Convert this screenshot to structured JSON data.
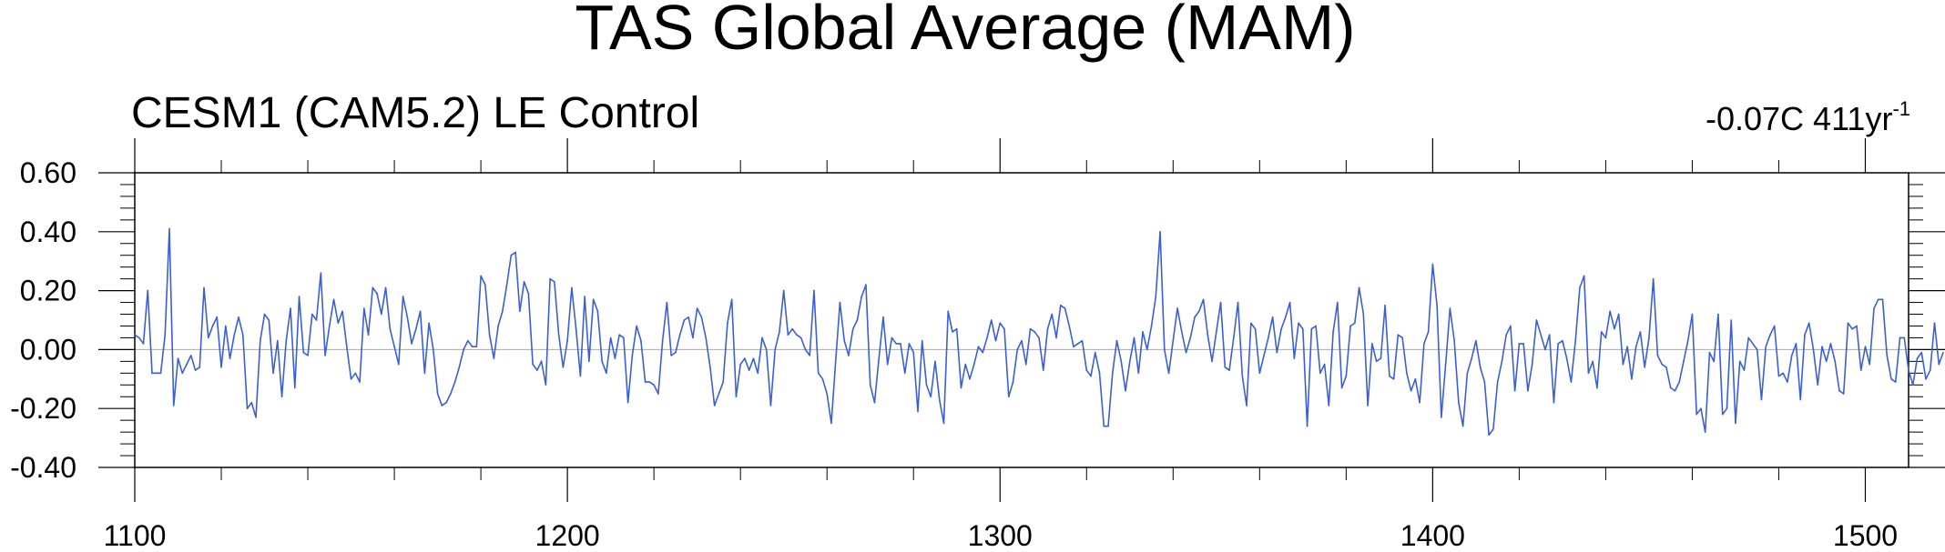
{
  "chart_data": {
    "type": "line",
    "title": "TAS Global Average (MAM)",
    "subtitle": "CESM1 (CAM5.2) LE Control",
    "trend_label": "-0.07C 411yr",
    "trend_exponent": "-1",
    "xlabel": "",
    "ylabel": "",
    "xlim": [
      1100,
      1510
    ],
    "ylim": [
      -0.4,
      0.6
    ],
    "xticks": [
      1100,
      1200,
      1300,
      1400,
      1500
    ],
    "xtick_labels": [
      "1100",
      "1200",
      "1300",
      "1400",
      "1500"
    ],
    "yticks": [
      -0.4,
      -0.2,
      0.0,
      0.2,
      0.4,
      0.6
    ],
    "ytick_labels": [
      "-0.40",
      "-0.20",
      "0.00",
      "0.20",
      "0.40",
      "0.60"
    ],
    "zero_line": true,
    "grid": false,
    "colors": {
      "series": "#3b5fd8",
      "axis": "#000000",
      "zero_line": "#aaaaaa"
    },
    "series": [
      {
        "x_start": 1100,
        "x_step": 1,
        "values": [
          0.05,
          0.04,
          0.02,
          0.2,
          -0.08,
          -0.08,
          -0.08,
          0.05,
          0.41,
          -0.19,
          -0.03,
          -0.08,
          -0.05,
          -0.02,
          -0.07,
          -0.06,
          0.21,
          0.04,
          0.08,
          0.11,
          -0.06,
          0.08,
          -0.03,
          0.05,
          0.11,
          0.05,
          -0.2,
          -0.18,
          -0.23,
          0.03,
          0.12,
          0.1,
          -0.08,
          0.03,
          -0.16,
          0.03,
          0.14,
          -0.13,
          0.18,
          -0.01,
          -0.02,
          0.12,
          0.1,
          0.26,
          -0.02,
          0.08,
          0.17,
          0.09,
          0.13,
          0.01,
          -0.1,
          -0.08,
          -0.11,
          0.14,
          0.05,
          0.21,
          0.19,
          0.12,
          0.21,
          0.07,
          0.01,
          -0.05,
          0.18,
          0.11,
          0.02,
          0.07,
          0.13,
          -0.08,
          0.09,
          0.0,
          -0.15,
          -0.19,
          -0.18,
          -0.15,
          -0.11,
          -0.06,
          0.0,
          0.03,
          0.01,
          0.01,
          0.25,
          0.22,
          0.05,
          -0.03,
          0.08,
          0.13,
          0.22,
          0.32,
          0.33,
          0.13,
          0.23,
          0.19,
          -0.05,
          -0.07,
          -0.04,
          -0.12,
          0.24,
          0.23,
          0.05,
          -0.06,
          0.03,
          0.21,
          0.07,
          -0.09,
          0.18,
          -0.04,
          0.17,
          0.13,
          -0.04,
          -0.08,
          0.04,
          -0.03,
          0.05,
          0.04,
          -0.18,
          -0.02,
          0.08,
          0.03,
          -0.11,
          -0.11,
          -0.12,
          -0.15,
          0.03,
          0.16,
          -0.02,
          -0.01,
          0.05,
          0.1,
          0.11,
          0.04,
          0.14,
          0.11,
          0.04,
          -0.06,
          -0.19,
          -0.15,
          -0.11,
          0.09,
          0.17,
          -0.16,
          -0.05,
          -0.03,
          -0.07,
          -0.03,
          -0.08,
          0.04,
          0.0,
          -0.19,
          0.0,
          0.06,
          0.2,
          0.05,
          0.07,
          0.05,
          0.04,
          0.0,
          -0.02,
          0.2,
          -0.08,
          -0.1,
          -0.15,
          -0.25,
          -0.04,
          0.16,
          0.03,
          -0.02,
          0.07,
          0.1,
          0.18,
          0.22,
          -0.12,
          -0.18,
          -0.03,
          0.11,
          -0.05,
          0.04,
          0.02,
          0.02,
          -0.08,
          0.02,
          -0.01,
          -0.21,
          0.03,
          -0.12,
          -0.16,
          -0.04,
          -0.17,
          -0.25,
          0.13,
          0.06,
          0.07,
          -0.13,
          -0.05,
          -0.1,
          -0.05,
          0.01,
          -0.01,
          0.04,
          0.1,
          0.03,
          0.09,
          0.07,
          -0.16,
          -0.11,
          0.0,
          0.03,
          -0.05,
          0.07,
          0.06,
          0.04,
          -0.07,
          0.07,
          0.12,
          0.04,
          0.15,
          0.14,
          0.08,
          0.01,
          0.02,
          0.03,
          -0.07,
          -0.09,
          -0.01,
          -0.08,
          -0.26,
          -0.26,
          -0.08,
          0.03,
          -0.04,
          -0.14,
          -0.04,
          0.04,
          -0.08,
          0.06,
          0.0,
          0.08,
          0.18,
          0.4,
          0.0,
          -0.08,
          0.03,
          0.14,
          0.06,
          -0.01,
          0.04,
          0.11,
          0.13,
          0.17,
          0.05,
          -0.04,
          0.06,
          0.16,
          -0.06,
          -0.07,
          0.04,
          0.16,
          -0.09,
          -0.19,
          0.09,
          0.07,
          -0.08,
          -0.02,
          0.04,
          0.11,
          -0.01,
          0.07,
          0.11,
          0.16,
          -0.03,
          0.09,
          0.07,
          -0.26,
          0.07,
          0.08,
          -0.08,
          -0.05,
          -0.19,
          0.06,
          0.16,
          -0.13,
          -0.09,
          0.08,
          0.09,
          0.21,
          0.12,
          -0.19,
          0.02,
          -0.04,
          -0.03,
          0.15,
          -0.09,
          -0.1,
          0.05,
          0.04,
          -0.08,
          -0.14,
          -0.1,
          -0.18,
          0.02,
          0.06,
          0.29,
          0.15,
          -0.23,
          -0.05,
          0.14,
          0.03,
          -0.18,
          -0.26,
          -0.08,
          -0.03,
          0.03,
          -0.06,
          -0.11,
          -0.29,
          -0.27,
          -0.11,
          -0.04,
          0.05,
          0.08,
          -0.14,
          0.02,
          0.02,
          -0.14,
          -0.05,
          0.1,
          0.05,
          0.0,
          0.05,
          -0.18,
          0.02,
          0.03,
          -0.03,
          -0.11,
          0.03,
          0.21,
          0.25,
          -0.08,
          -0.04,
          -0.13,
          0.06,
          0.04,
          0.13,
          0.07,
          0.12,
          -0.05,
          0.01,
          -0.1,
          0.01,
          0.06,
          -0.06,
          0.04,
          0.24,
          -0.02,
          -0.05,
          -0.06,
          -0.13,
          -0.14,
          -0.11,
          -0.04,
          0.03,
          0.12,
          -0.22,
          -0.2,
          -0.28,
          -0.01,
          -0.04,
          0.12,
          -0.22,
          -0.2,
          0.1,
          -0.25,
          -0.04,
          -0.07,
          0.04,
          0.02,
          0.0,
          -0.17,
          0.01,
          0.05,
          0.08,
          -0.09,
          -0.08,
          -0.11,
          -0.02,
          0.02,
          -0.17,
          0.05,
          0.09,
          0.0,
          -0.12,
          0.01,
          -0.04,
          0.02,
          -0.04,
          -0.14,
          -0.15,
          0.09,
          0.07,
          0.08,
          -0.07,
          0.01,
          -0.05,
          0.14,
          0.17,
          0.17,
          -0.02,
          -0.1,
          -0.11,
          0.04,
          0.04,
          -0.07,
          -0.12,
          -0.03,
          -0.01,
          -0.1,
          -0.07,
          0.09,
          -0.05,
          -0.01
        ]
      }
    ]
  }
}
